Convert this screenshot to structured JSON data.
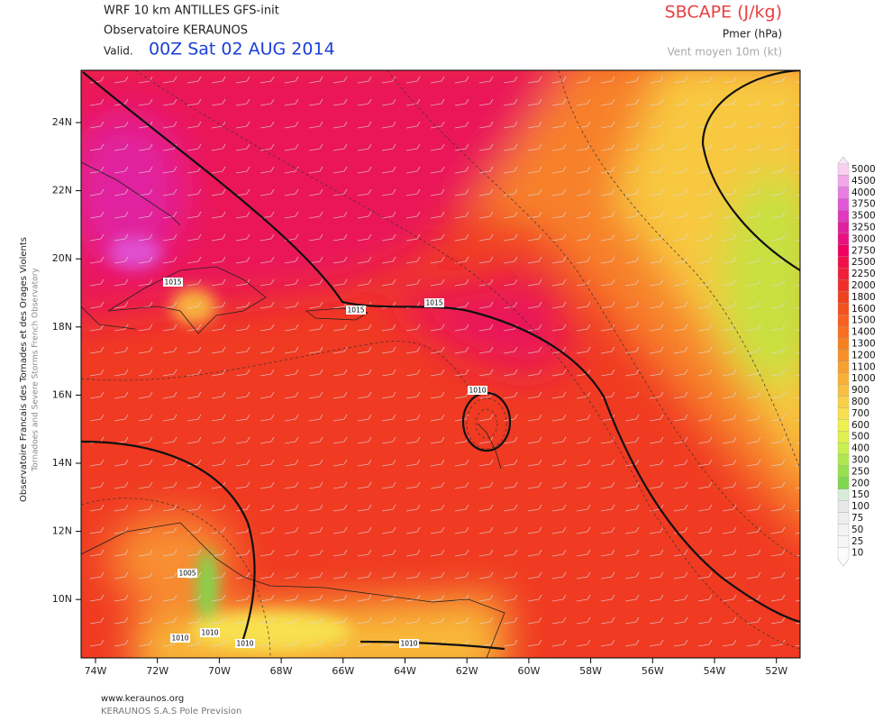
{
  "header": {
    "model": "WRF 10 km ANTILLES  GFS-init",
    "observatory": "Observatoire KERAUNOS",
    "valid_prefix": "Valid.",
    "valid_time": "00Z Sat 02 AUG 2014",
    "field": "SBCAPE (J/kg)",
    "pressure": "Pmer (hPa)",
    "wind": "Vent moyen 10m (kt)"
  },
  "side": {
    "line1": "Observatoire Francais des Tornades et des Orages Violents",
    "line2": "Tornadoes and Severe Storms French Observatory"
  },
  "map": {
    "lat_labels": [
      "24N",
      "22N",
      "20N",
      "18N",
      "16N",
      "14N",
      "12N",
      "10N"
    ],
    "lon_labels": [
      "74W",
      "72W",
      "70W",
      "68W",
      "66W",
      "64W",
      "62W",
      "60W",
      "58W",
      "56W",
      "54W",
      "52W"
    ],
    "isobar_labels": [
      "1015",
      "1015",
      "1015",
      "1010",
      "1005",
      "1010",
      "1010",
      "1010",
      "1010"
    ]
  },
  "colorbar": {
    "labels": [
      "5000",
      "4500",
      "4000",
      "3750",
      "3500",
      "3250",
      "3000",
      "2750",
      "2500",
      "2250",
      "2000",
      "1800",
      "1600",
      "1500",
      "1400",
      "1300",
      "1200",
      "1100",
      "1000",
      "900",
      "800",
      "700",
      "600",
      "500",
      "400",
      "300",
      "250",
      "200",
      "150",
      "100",
      "75",
      "50",
      "25",
      "10"
    ]
  },
  "footer": {
    "url": "www.keraunos.org",
    "company": "KERAUNOS S.A.S Pole Prevision"
  }
}
